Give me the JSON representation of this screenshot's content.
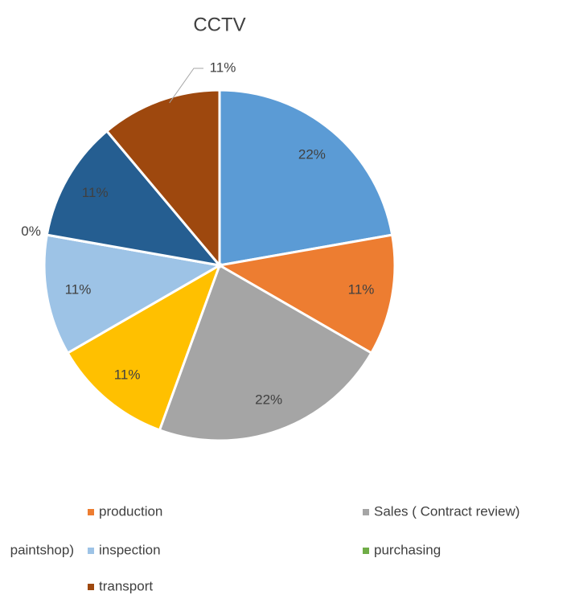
{
  "chart_data": {
    "type": "pie",
    "title": "CCTV",
    "categories": [
      null,
      "production",
      "Sales ( Contract review)",
      "paintshop)",
      "inspection",
      "purchasing",
      null,
      "transport"
    ],
    "values": [
      22,
      11,
      22,
      11,
      11,
      0,
      11,
      11
    ],
    "value_labels": [
      "22%",
      "11%",
      "22%",
      "11%",
      "11%",
      "0%",
      "11%",
      "11%"
    ],
    "colors": [
      "#5b9bd5",
      "#ed7d31",
      "#a5a5a5",
      "#ffc000",
      "#9dc3e6",
      "#70ad47",
      "#255e91",
      "#9e480e"
    ],
    "legend": "bottom"
  }
}
